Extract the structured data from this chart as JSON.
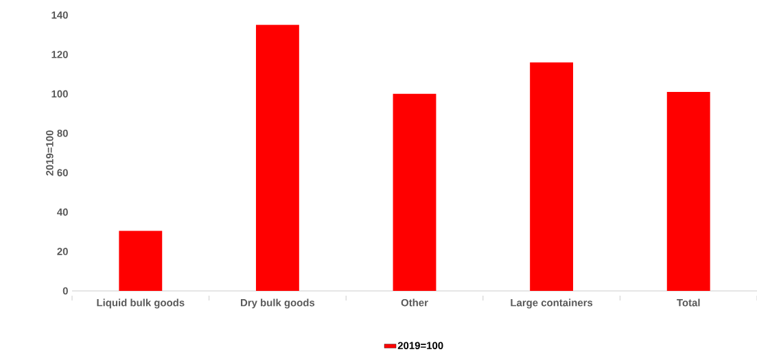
{
  "chart_data": {
    "type": "bar",
    "ylabel": "2019=100",
    "categories": [
      "Liquid bulk goods",
      "Dry bulk goods",
      "Other",
      "Large containers",
      "Total"
    ],
    "series": [
      {
        "name": "2019=100",
        "color": "#ff0000",
        "values": [
          30.5,
          135,
          100,
          116,
          101
        ]
      }
    ],
    "ylim": [
      0,
      140
    ],
    "yticks": [
      0,
      20,
      40,
      60,
      80,
      100,
      120,
      140
    ],
    "legend": "bottom"
  }
}
